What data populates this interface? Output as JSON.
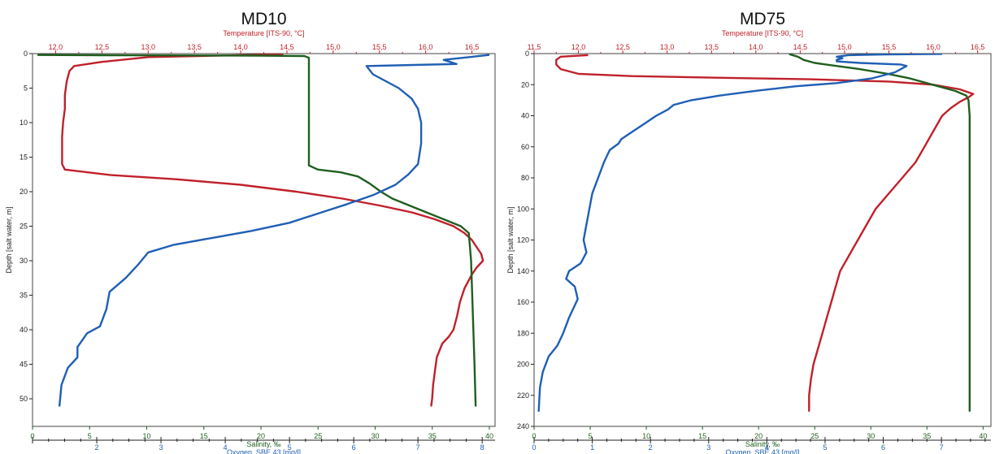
{
  "colors": {
    "temperature": "#c0202a",
    "salinity": "#1f5f1f",
    "oxygen": "#1f5fb4",
    "depth": "#222222",
    "frame": "#444444"
  },
  "chart_data": [
    {
      "type": "line",
      "title": "MD10",
      "ylabel": "Depth [salt water, m]",
      "ylim": [
        54,
        0
      ],
      "yticks": [
        0,
        5,
        10,
        15,
        20,
        25,
        30,
        35,
        40,
        45,
        50
      ],
      "axes": {
        "temperature": {
          "label": "Temperature [ITS-90, °C]",
          "lim": [
            11.75,
            16.75
          ],
          "ticks": [
            "12,0",
            "12,5",
            "13,0",
            "13,5",
            "14,0",
            "14,5",
            "15,0",
            "15,5",
            "16,0",
            "16,5"
          ],
          "tick_values": [
            12.0,
            12.5,
            13.0,
            13.5,
            14.0,
            14.5,
            15.0,
            15.5,
            16.0,
            16.5
          ]
        },
        "salinity": {
          "label": "Salinity, ‰",
          "lim": [
            0,
            40.5
          ],
          "ticks": [
            "0",
            "5",
            "10",
            "15",
            "20",
            "25",
            "30",
            "35",
            "40"
          ],
          "tick_values": [
            0,
            5,
            10,
            15,
            20,
            25,
            30,
            35,
            40
          ]
        },
        "oxygen": {
          "label": "Oxygen, SBE 43 [mg/l]",
          "lim": [
            1.0,
            8.2
          ],
          "ticks": [
            "2",
            "3",
            "4",
            "5",
            "6",
            "7",
            "8"
          ],
          "tick_values": [
            2,
            3,
            4,
            5,
            6,
            7,
            8
          ]
        }
      },
      "series": [
        {
          "name": "Temperature",
          "axis": "temperature",
          "points": [
            [
              14.45,
              0.1
            ],
            [
              13.0,
              0.5
            ],
            [
              12.5,
              1.2
            ],
            [
              12.2,
              1.8
            ],
            [
              12.15,
              2.5
            ],
            [
              12.12,
              4
            ],
            [
              12.1,
              6
            ],
            [
              12.1,
              8
            ],
            [
              12.08,
              10
            ],
            [
              12.07,
              12
            ],
            [
              12.07,
              14
            ],
            [
              12.07,
              16
            ],
            [
              12.1,
              16.8
            ],
            [
              12.6,
              17.6
            ],
            [
              13.3,
              18.2
            ],
            [
              14.0,
              19.0
            ],
            [
              14.6,
              20.0
            ],
            [
              15.1,
              21.0
            ],
            [
              15.5,
              22.0
            ],
            [
              15.85,
              23.0
            ],
            [
              16.1,
              24.0
            ],
            [
              16.3,
              25.0
            ],
            [
              16.42,
              26.0
            ],
            [
              16.5,
              27.0
            ],
            [
              16.55,
              28.0
            ],
            [
              16.6,
              29.0
            ],
            [
              16.62,
              30.0
            ],
            [
              16.55,
              31.0
            ],
            [
              16.5,
              32
            ],
            [
              16.42,
              34
            ],
            [
              16.37,
              36
            ],
            [
              16.34,
              38
            ],
            [
              16.3,
              40
            ],
            [
              16.25,
              41
            ],
            [
              16.18,
              42
            ],
            [
              16.12,
              44
            ],
            [
              16.1,
              46
            ],
            [
              16.08,
              48
            ],
            [
              16.07,
              50
            ],
            [
              16.06,
              51
            ]
          ]
        },
        {
          "name": "Salinity",
          "axis": "salinity",
          "points": [
            [
              0.5,
              0.2
            ],
            [
              8,
              0.25
            ],
            [
              20,
              0.3
            ],
            [
              23.8,
              0.35
            ],
            [
              24.2,
              0.6
            ],
            [
              24.2,
              2
            ],
            [
              24.2,
              4
            ],
            [
              24.2,
              6
            ],
            [
              24.2,
              8
            ],
            [
              24.2,
              10
            ],
            [
              24.2,
              12
            ],
            [
              24.2,
              14
            ],
            [
              24.2,
              16.2
            ],
            [
              25.0,
              16.8
            ],
            [
              27.0,
              17.2
            ],
            [
              28.5,
              17.8
            ],
            [
              29.5,
              18.8
            ],
            [
              30.5,
              20
            ],
            [
              31.5,
              21
            ],
            [
              33,
              22
            ],
            [
              34.5,
              23
            ],
            [
              36,
              24
            ],
            [
              37.5,
              25
            ],
            [
              38.2,
              26
            ],
            [
              38.3,
              28
            ],
            [
              38.4,
              30
            ],
            [
              38.5,
              35
            ],
            [
              38.6,
              40
            ],
            [
              38.7,
              45
            ],
            [
              38.8,
              51
            ]
          ]
        },
        {
          "name": "Oxygen",
          "axis": "oxygen",
          "points": [
            [
              8.1,
              0.2
            ],
            [
              7.8,
              0.5
            ],
            [
              7.4,
              0.9
            ],
            [
              7.6,
              1.5
            ],
            [
              6.2,
              1.8
            ],
            [
              6.3,
              3
            ],
            [
              6.5,
              4
            ],
            [
              6.7,
              5
            ],
            [
              6.9,
              6.5
            ],
            [
              7.0,
              8
            ],
            [
              7.05,
              10
            ],
            [
              7.05,
              13
            ],
            [
              7.0,
              16
            ],
            [
              6.85,
              17.5
            ],
            [
              6.65,
              19
            ],
            [
              6.3,
              20.5
            ],
            [
              5.9,
              21.8
            ],
            [
              5.5,
              23.0
            ],
            [
              5.0,
              24.5
            ],
            [
              4.4,
              25.7
            ],
            [
              3.8,
              26.7
            ],
            [
              3.2,
              27.7
            ],
            [
              2.8,
              28.8
            ],
            [
              2.65,
              30.5
            ],
            [
              2.45,
              32.5
            ],
            [
              2.2,
              34.5
            ],
            [
              2.15,
              37
            ],
            [
              2.05,
              39.5
            ],
            [
              1.85,
              40.5
            ],
            [
              1.7,
              42.5
            ],
            [
              1.7,
              44
            ],
            [
              1.55,
              45.5
            ],
            [
              1.45,
              48
            ],
            [
              1.42,
              51
            ]
          ]
        }
      ]
    },
    {
      "type": "line",
      "title": "MD75",
      "ylabel": "Depth [salt water, m]",
      "ylim": [
        240,
        0
      ],
      "yticks": [
        0,
        20,
        40,
        60,
        80,
        100,
        120,
        140,
        160,
        180,
        200,
        220,
        240
      ],
      "axes": {
        "temperature": {
          "label": "Temperature [ITS-90, °C]",
          "lim": [
            11.5,
            16.65
          ],
          "ticks": [
            "11,5",
            "12,0",
            "12,5",
            "13,0",
            "13,5",
            "14,0",
            "14,5",
            "15,0",
            "15,5",
            "16,0",
            "16,5"
          ],
          "tick_values": [
            11.5,
            12.0,
            12.5,
            13.0,
            13.5,
            14.0,
            14.5,
            15.0,
            15.5,
            16.0,
            16.5
          ]
        },
        "salinity": {
          "label": "Salinity, ‰",
          "lim": [
            0,
            40.7
          ],
          "ticks": [
            "0",
            "5",
            "10",
            "15",
            "20",
            "25",
            "30",
            "35",
            "40"
          ],
          "tick_values": [
            0,
            5,
            10,
            15,
            20,
            25,
            30,
            35,
            40
          ]
        },
        "oxygen": {
          "label": "Oxygen, SBE 43 [mg/l]",
          "lim": [
            0,
            7.85
          ],
          "ticks": [
            "0",
            "1",
            "2",
            "3",
            "4",
            "5",
            "6",
            "7"
          ],
          "tick_values": [
            0,
            1,
            2,
            3,
            4,
            5,
            6,
            7
          ]
        }
      },
      "series": [
        {
          "name": "Temperature",
          "axis": "temperature",
          "points": [
            [
              12.1,
              1
            ],
            [
              11.8,
              2
            ],
            [
              11.75,
              4
            ],
            [
              11.75,
              7
            ],
            [
              11.8,
              10
            ],
            [
              12.0,
              13
            ],
            [
              12.6,
              14.5
            ],
            [
              13.5,
              15.5
            ],
            [
              14.6,
              16.5
            ],
            [
              15.5,
              18
            ],
            [
              16.0,
              20
            ],
            [
              16.3,
              23
            ],
            [
              16.45,
              26
            ],
            [
              16.4,
              28
            ],
            [
              16.3,
              31
            ],
            [
              16.2,
              35
            ],
            [
              16.1,
              40
            ],
            [
              16.0,
              50
            ],
            [
              15.9,
              60
            ],
            [
              15.8,
              70
            ],
            [
              15.65,
              80
            ],
            [
              15.5,
              90
            ],
            [
              15.35,
              100
            ],
            [
              15.25,
              110
            ],
            [
              15.15,
              120
            ],
            [
              15.05,
              130
            ],
            [
              14.95,
              140
            ],
            [
              14.9,
              150
            ],
            [
              14.85,
              160
            ],
            [
              14.8,
              170
            ],
            [
              14.75,
              180
            ],
            [
              14.7,
              190
            ],
            [
              14.65,
              200
            ],
            [
              14.62,
              210
            ],
            [
              14.6,
              220
            ],
            [
              14.6,
              230
            ]
          ]
        },
        {
          "name": "Salinity",
          "axis": "salinity",
          "points": [
            [
              22.8,
              0.5
            ],
            [
              23.5,
              2
            ],
            [
              24,
              4
            ],
            [
              25,
              6
            ],
            [
              27,
              8
            ],
            [
              29,
              10
            ],
            [
              31.5,
              13
            ],
            [
              33.5,
              16
            ],
            [
              35.5,
              20
            ],
            [
              37.5,
              24
            ],
            [
              38.5,
              27
            ],
            [
              38.7,
              30
            ],
            [
              38.8,
              40
            ],
            [
              38.8,
              60
            ],
            [
              38.8,
              100
            ],
            [
              38.8,
              150
            ],
            [
              38.8,
              200
            ],
            [
              38.8,
              230
            ]
          ]
        },
        {
          "name": "Oxygen",
          "axis": "oxygen",
          "points": [
            [
              7.0,
              0.2
            ],
            [
              6.0,
              0.5
            ],
            [
              5.4,
              1
            ],
            [
              5.2,
              2
            ],
            [
              5.3,
              3
            ],
            [
              5.2,
              4
            ],
            [
              5.2,
              5
            ],
            [
              5.6,
              6
            ],
            [
              6.3,
              7
            ],
            [
              6.4,
              8
            ],
            [
              6.2,
              12
            ],
            [
              5.8,
              16
            ],
            [
              5.2,
              19
            ],
            [
              4.5,
              21
            ],
            [
              3.8,
              24
            ],
            [
              3.2,
              27
            ],
            [
              2.7,
              30
            ],
            [
              2.4,
              33
            ],
            [
              2.3,
              36
            ],
            [
              2.1,
              40
            ],
            [
              1.9,
              45
            ],
            [
              1.7,
              50
            ],
            [
              1.5,
              55
            ],
            [
              1.45,
              58
            ],
            [
              1.3,
              62
            ],
            [
              1.2,
              70
            ],
            [
              1.1,
              80
            ],
            [
              1.0,
              90
            ],
            [
              0.95,
              100
            ],
            [
              0.9,
              110
            ],
            [
              0.85,
              120
            ],
            [
              0.9,
              128
            ],
            [
              0.8,
              135
            ],
            [
              0.6,
              140
            ],
            [
              0.55,
              145
            ],
            [
              0.7,
              150
            ],
            [
              0.75,
              158
            ],
            [
              0.6,
              170
            ],
            [
              0.5,
              180
            ],
            [
              0.4,
              188
            ],
            [
              0.25,
              195
            ],
            [
              0.15,
              205
            ],
            [
              0.1,
              215
            ],
            [
              0.08,
              230
            ]
          ]
        }
      ]
    }
  ]
}
